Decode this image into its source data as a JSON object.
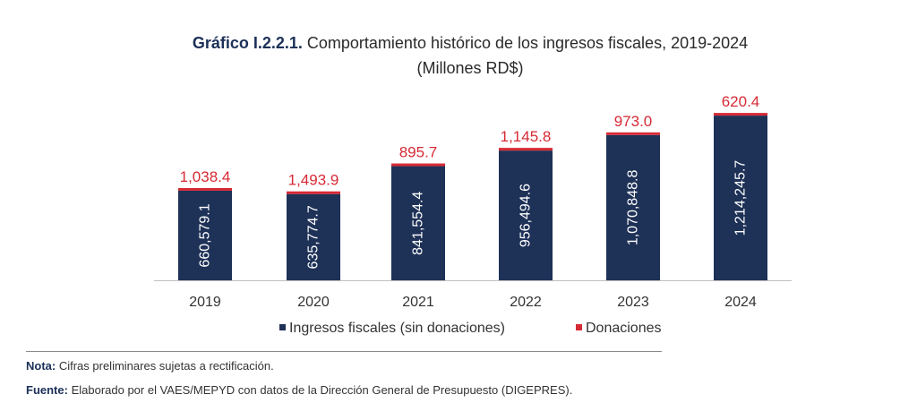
{
  "title": {
    "prefix": "Gráfico I.2.2.1.",
    "text": " Comportamiento histórico de los ingresos fiscales, 2019-2024",
    "subtitle": "(Millones RD$)"
  },
  "colors": {
    "ingresos": "#1e3157",
    "donaciones": "#d62a35",
    "axis": "#bfbfbf",
    "label_dark": "#ffffff",
    "label_red": "#d62a35"
  },
  "chart_data": {
    "type": "bar",
    "stacked": true,
    "title": "Comportamiento histórico de los ingresos fiscales, 2019-2024",
    "subtitle": "(Millones RD$)",
    "categories": [
      "2019",
      "2020",
      "2021",
      "2022",
      "2023",
      "2024"
    ],
    "series": [
      {
        "name": "Ingresos fiscales (sin donaciones)",
        "values": [
          660579.1,
          635774.7,
          841554.4,
          956494.6,
          1070848.8,
          1214245.7
        ],
        "labels": [
          "660,579.1",
          "635,774.7",
          "841,554.4",
          "956,494.6",
          "1,070,848.8",
          "1,214,245.7"
        ],
        "color": "#1e3157"
      },
      {
        "name": "Donaciones",
        "values": [
          1038.4,
          1493.9,
          895.7,
          1145.8,
          973.0,
          620.4
        ],
        "labels": [
          "1,038.4",
          "1,493.9",
          "895.7",
          "1,145.8",
          "973.0",
          "620.4"
        ],
        "color": "#d62a35"
      }
    ],
    "ylim": [
      0,
      1350000
    ],
    "legend": "bottom-center",
    "grid": false
  },
  "notes": {
    "nota_label": "Nota:",
    "nota_text": " Cifras preliminares sujetas a rectificación.",
    "fuente_label": "Fuente:",
    "fuente_text": " Elaborado por el VAES/MEPYD con datos de la Dirección General de Presupuesto (DIGEPRES)."
  }
}
